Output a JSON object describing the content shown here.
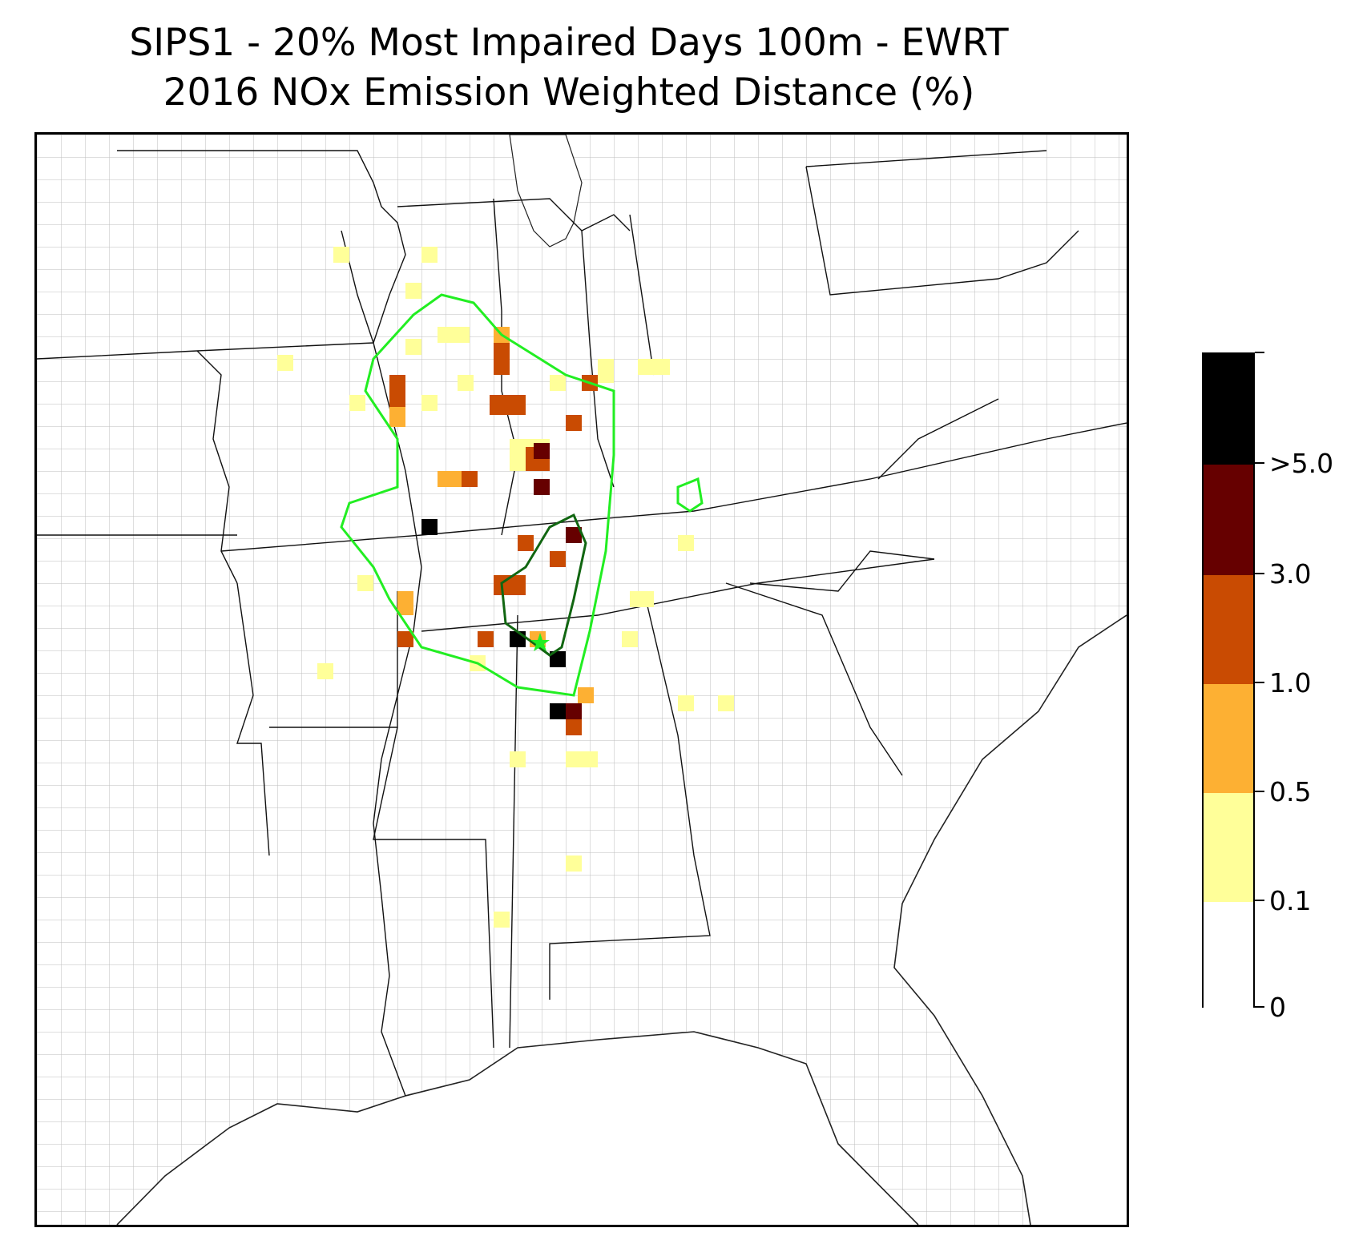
{
  "title": {
    "line1": "SIPS1 - 20% Most Impaired Days 100m - EWRT",
    "line2": "2016 NOx Emission Weighted Distance (%)"
  },
  "colorbar": {
    "labels": [
      "0",
      "0.1",
      "0.5",
      "1.0",
      "3.0",
      ">5.0"
    ],
    "colors": [
      "#ffffff",
      "#ffff99",
      "#fdb033",
      "#c94b02",
      "#660000",
      "#000000"
    ]
  },
  "legend_contours": {
    "outer_color": "#22ee22",
    "inner_color": "#116611",
    "source_marker_color": "#22ee22"
  }
}
